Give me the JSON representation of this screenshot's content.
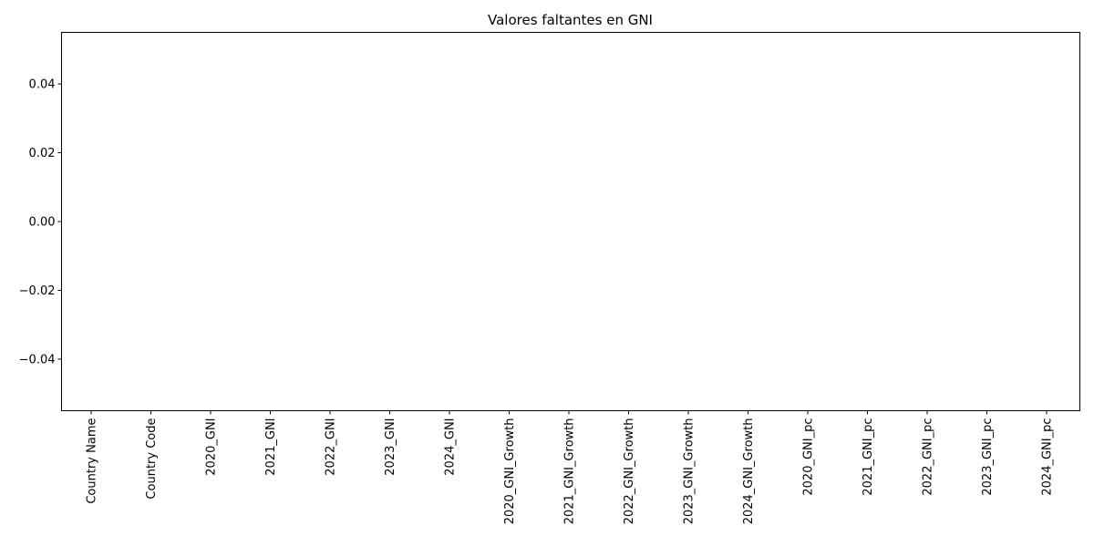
{
  "chart_data": {
    "type": "bar",
    "title": "Valores faltantes en GNI",
    "xlabel": "",
    "ylabel": "",
    "categories": [
      "Country Name",
      "Country Code",
      "2020_GNI",
      "2021_GNI",
      "2022_GNI",
      "2023_GNI",
      "2024_GNI",
      "2020_GNI_Growth",
      "2021_GNI_Growth",
      "2022_GNI_Growth",
      "2023_GNI_Growth",
      "2024_GNI_Growth",
      "2020_GNI_pc",
      "2021_GNI_pc",
      "2022_GNI_pc",
      "2023_GNI_pc",
      "2024_GNI_pc"
    ],
    "values": [
      0,
      0,
      0,
      0,
      0,
      0,
      0,
      0,
      0,
      0,
      0,
      0,
      0,
      0,
      0,
      0,
      0
    ],
    "ylim": [
      -0.055,
      0.055
    ],
    "yticks": [
      0.04,
      0.02,
      0.0,
      -0.02,
      -0.04
    ],
    "ytick_labels": [
      "0.04",
      "0.02",
      "0.00",
      "−0.02",
      "−0.04"
    ],
    "grid": false,
    "legend": "none",
    "colors": {
      "bar": "#1f77b4",
      "axes": "#000000",
      "background": "#ffffff"
    }
  }
}
